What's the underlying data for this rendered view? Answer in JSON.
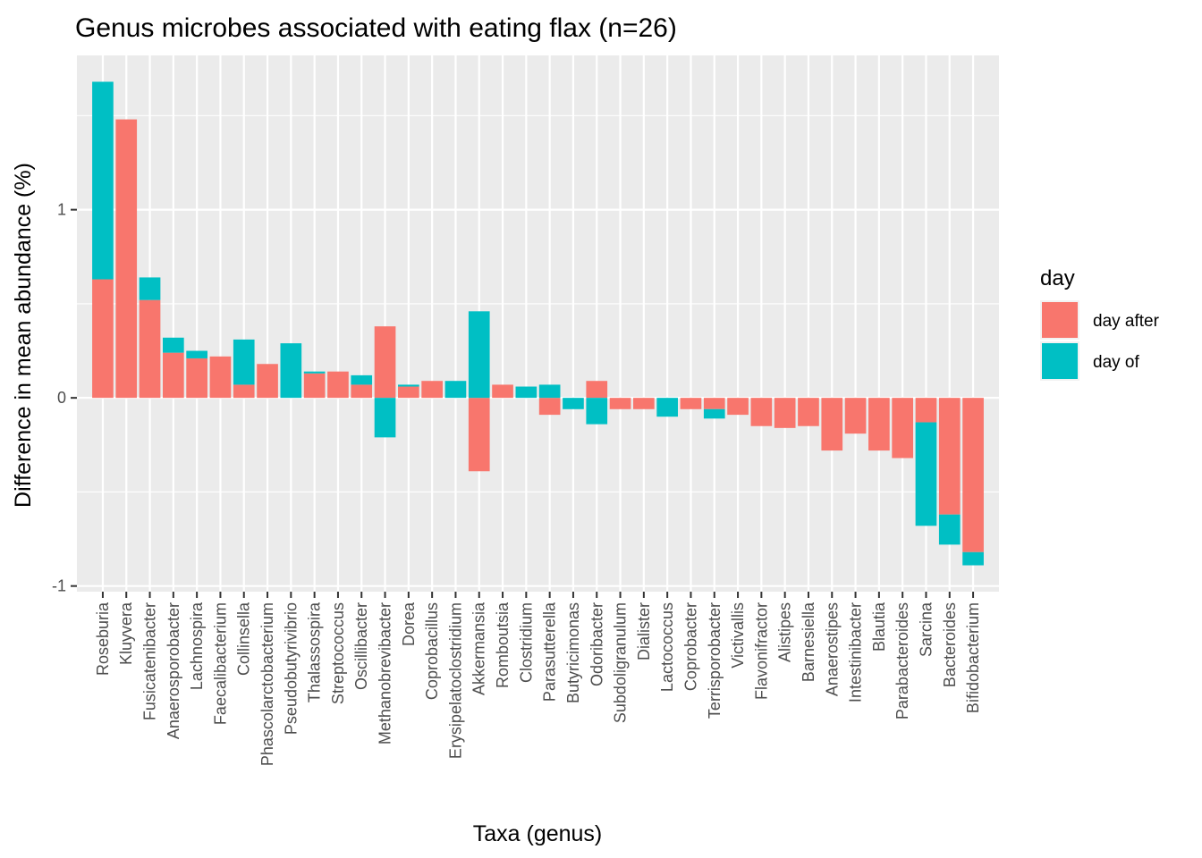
{
  "chart_data": {
    "type": "bar",
    "stacked": true,
    "title": "Genus microbes associated with eating flax (n=26)",
    "xlabel": "Taxa (genus)",
    "ylabel": "Difference in mean abundance (%)",
    "ylim": [
      -1.03,
      1.82
    ],
    "yticks": [
      -1,
      0,
      1
    ],
    "ytick_labels": [
      "-1",
      "0",
      "1"
    ],
    "grid": true,
    "legend": {
      "title": "day",
      "placement": "right"
    },
    "categories": [
      "Roseburia",
      "Kluyvera",
      "Fusicatenibacter",
      "Anaerosporobacter",
      "Lachnospira",
      "Faecalibacterium",
      "Collinsella",
      "Phascolarctobacterium",
      "Pseudobutyrivibrio",
      "Thalassospira",
      "Streptococcus",
      "Oscillibacter",
      "Methanobrevibacter",
      "Dorea",
      "Coprobacillus",
      "Erysipelatoclostridium",
      "Akkermansia",
      "Romboutsia",
      "Clostridium",
      "Parasutterella",
      "Butyricimonas",
      "Odoribacter",
      "Subdoligranulum",
      "Dialister",
      "Lactococcus",
      "Coprobacter",
      "Terrisporobacter",
      "Victivallis",
      "Flavonifractor",
      "Alistipes",
      "Barnesiella",
      "Anaerostipes",
      "Intestinibacter",
      "Blautia",
      "Parabacteroides",
      "Sarcina",
      "Bacteroides",
      "Bifidobacterium"
    ],
    "series": [
      {
        "name": "day after",
        "color": "#F8766D",
        "values": [
          0.63,
          1.48,
          0.52,
          0.24,
          0.21,
          0.22,
          0.07,
          0.18,
          0.0,
          0.13,
          0.14,
          0.07,
          0.38,
          0.06,
          0.09,
          0.0,
          -0.39,
          0.07,
          0.0,
          -0.09,
          0.0,
          0.09,
          -0.06,
          -0.06,
          0.0,
          -0.06,
          -0.06,
          -0.09,
          -0.15,
          -0.16,
          -0.15,
          -0.28,
          -0.19,
          -0.28,
          -0.32,
          -0.13,
          -0.62,
          -0.82
        ]
      },
      {
        "name": "day of",
        "color": "#00BFC4",
        "values": [
          1.05,
          0.0,
          0.12,
          0.08,
          0.04,
          0.0,
          0.24,
          0.0,
          0.29,
          0.01,
          0.0,
          0.05,
          -0.21,
          0.01,
          0.0,
          0.09,
          0.46,
          0.0,
          0.06,
          0.07,
          -0.06,
          -0.14,
          0.0,
          0.0,
          -0.1,
          0.0,
          -0.05,
          0.0,
          0.0,
          0.0,
          0.0,
          0.0,
          0.0,
          0.0,
          0.0,
          -0.55,
          -0.16,
          -0.07
        ]
      }
    ]
  }
}
